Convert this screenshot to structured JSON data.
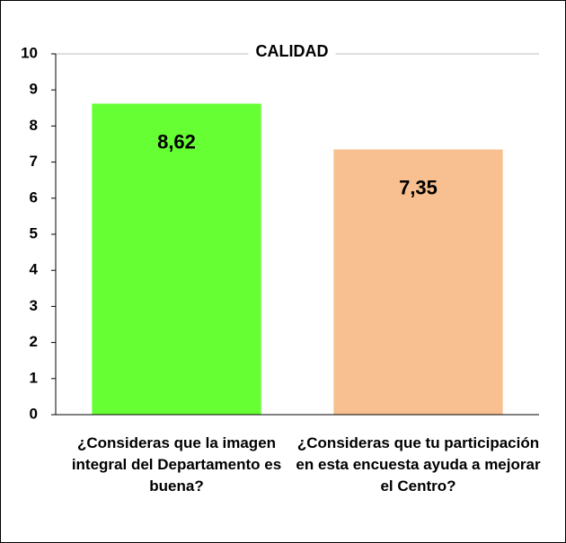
{
  "chart_data": {
    "type": "bar",
    "title": "CALIDAD",
    "categories": [
      "¿Consideras que la imagen integral del Departamento es buena?",
      "¿Consideras que tu participación en esta encuesta ayuda a mejorar el Centro?"
    ],
    "values": [
      8.62,
      7.35
    ],
    "value_labels": [
      "8,62",
      "7,35"
    ],
    "colors": [
      "#66ff33",
      "#f8c090"
    ],
    "ylim": [
      0,
      10
    ],
    "yticks": [
      0,
      1,
      2,
      3,
      4,
      5,
      6,
      7,
      8,
      9,
      10
    ],
    "grid": false
  }
}
